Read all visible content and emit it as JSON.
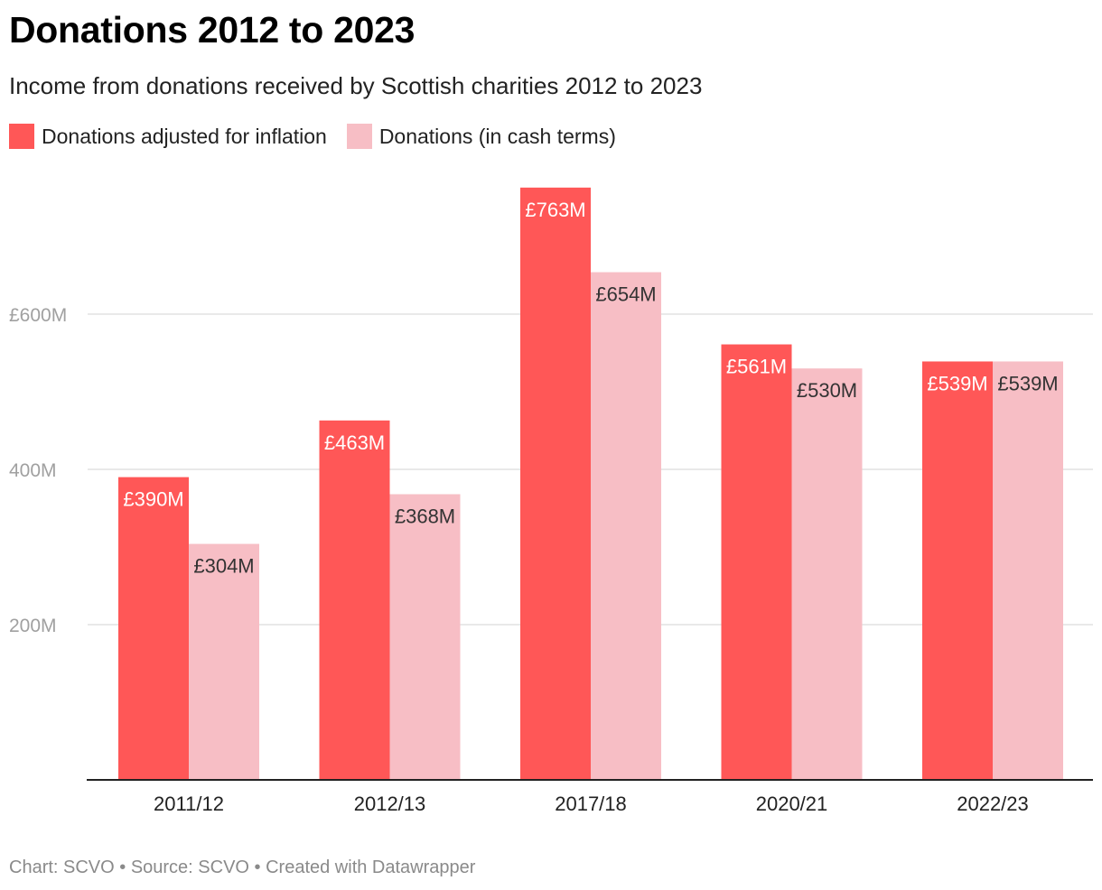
{
  "title": "Donations 2012 to 2023",
  "subtitle": "Income from donations received by Scottish charities 2012 to 2023",
  "legend": [
    {
      "label": "Donations adjusted for inflation",
      "color": "#ff5757"
    },
    {
      "label": "Donations (in cash terms)",
      "color": "#f7bec5"
    }
  ],
  "footer": {
    "text": "Chart: SCVO • Source: SCVO • Created with Datawrapper"
  },
  "chart_data": {
    "type": "bar",
    "categories": [
      "2011/12",
      "2012/13",
      "2017/18",
      "2020/21",
      "2022/23"
    ],
    "series": [
      {
        "name": "Donations adjusted for inflation",
        "color": "#ff5757",
        "values": [
          390,
          463,
          763,
          561,
          539
        ],
        "labels": [
          "£390M",
          "£463M",
          "£763M",
          "£561M",
          "£539M"
        ]
      },
      {
        "name": "Donations (in cash terms)",
        "color": "#f7bec5",
        "values": [
          304,
          368,
          654,
          530,
          539
        ],
        "labels": [
          "£304M",
          "£368M",
          "£654M",
          "£530M",
          "£539M"
        ]
      }
    ],
    "y_ticks": [
      {
        "value": 200,
        "label": "200M"
      },
      {
        "value": 400,
        "label": "400M"
      },
      {
        "value": 600,
        "label": "£600M"
      }
    ],
    "ylim": [
      0,
      800
    ],
    "xlabel": "",
    "ylabel": "",
    "grid": true
  }
}
